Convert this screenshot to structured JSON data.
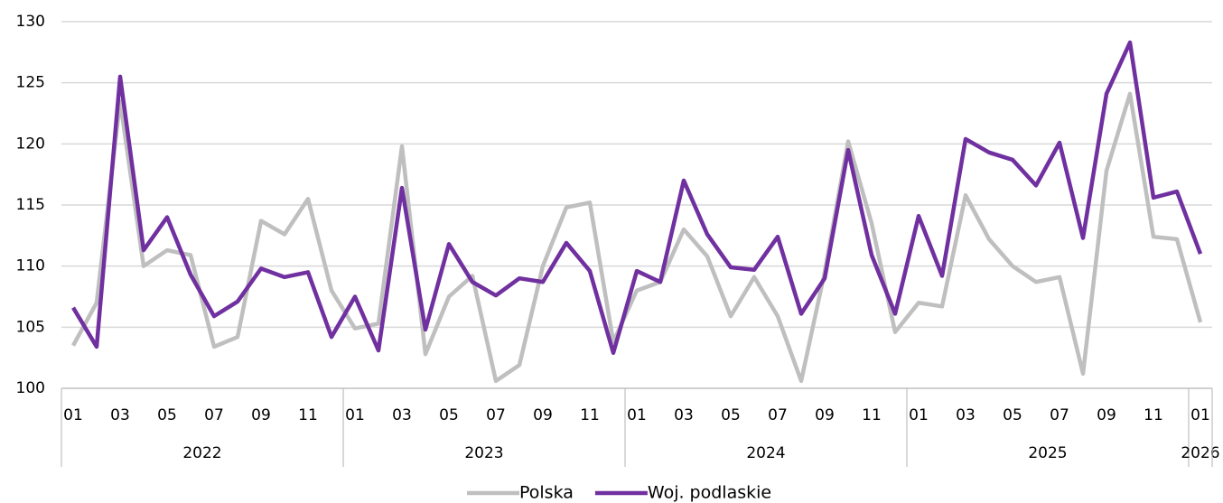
{
  "chart_data": {
    "type": "line",
    "categories": [
      "01",
      null,
      "03",
      null,
      "05",
      null,
      "07",
      null,
      "09",
      null,
      "11",
      null,
      "01",
      null,
      "03",
      null,
      "05",
      null,
      "07",
      null,
      "09",
      null,
      "11",
      null,
      "01",
      null,
      "03",
      null,
      "05",
      null,
      "07",
      null,
      "09",
      null,
      "11",
      null,
      "01",
      null,
      "03",
      null,
      "05",
      null,
      "07",
      null,
      "09",
      null,
      "11",
      null,
      "01"
    ],
    "years": [
      "2022",
      "2023",
      "2024",
      "2025",
      "2026"
    ],
    "series": [
      {
        "name": "Polska",
        "color": "#bfbfbf",
        "values": [
          103.5,
          107,
          123.5,
          110,
          111.3,
          110.9,
          103.4,
          104.2,
          113.7,
          112.6,
          115.5,
          108,
          104.9,
          105.3,
          119.8,
          102.8,
          107.5,
          109.2,
          100.6,
          101.9,
          110,
          114.8,
          115.2,
          103.8,
          108,
          108.7,
          113,
          110.8,
          105.9,
          109.1,
          105.9,
          100.6,
          109.5,
          120.2,
          113.5,
          104.6,
          107,
          106.7,
          115.8,
          112.2,
          110,
          108.7,
          109.1,
          101.2,
          117.8,
          124.1,
          112.4,
          112.2,
          105.4
        ]
      },
      {
        "name": "Woj. podlaskie",
        "color": "#7030a0",
        "values": [
          106.6,
          103.4,
          125.5,
          111.3,
          114,
          109.3,
          105.9,
          107.1,
          109.8,
          109.1,
          109.5,
          104.2,
          107.5,
          103.1,
          116.4,
          104.8,
          111.8,
          108.7,
          107.6,
          109,
          108.7,
          111.9,
          109.6,
          102.9,
          109.6,
          108.7,
          117,
          112.6,
          109.9,
          109.7,
          112.4,
          106.1,
          109,
          119.5,
          110.9,
          106.1,
          114.1,
          109.2,
          120.4,
          119.3,
          118.7,
          116.6,
          120.1,
          112.3,
          124.1,
          128.3,
          115.6,
          116.1,
          111
        ]
      }
    ],
    "ylim": [
      100,
      130
    ],
    "yticks": [
      100,
      105,
      110,
      115,
      120,
      125,
      130
    ],
    "grid": true,
    "legend": "bottom"
  }
}
